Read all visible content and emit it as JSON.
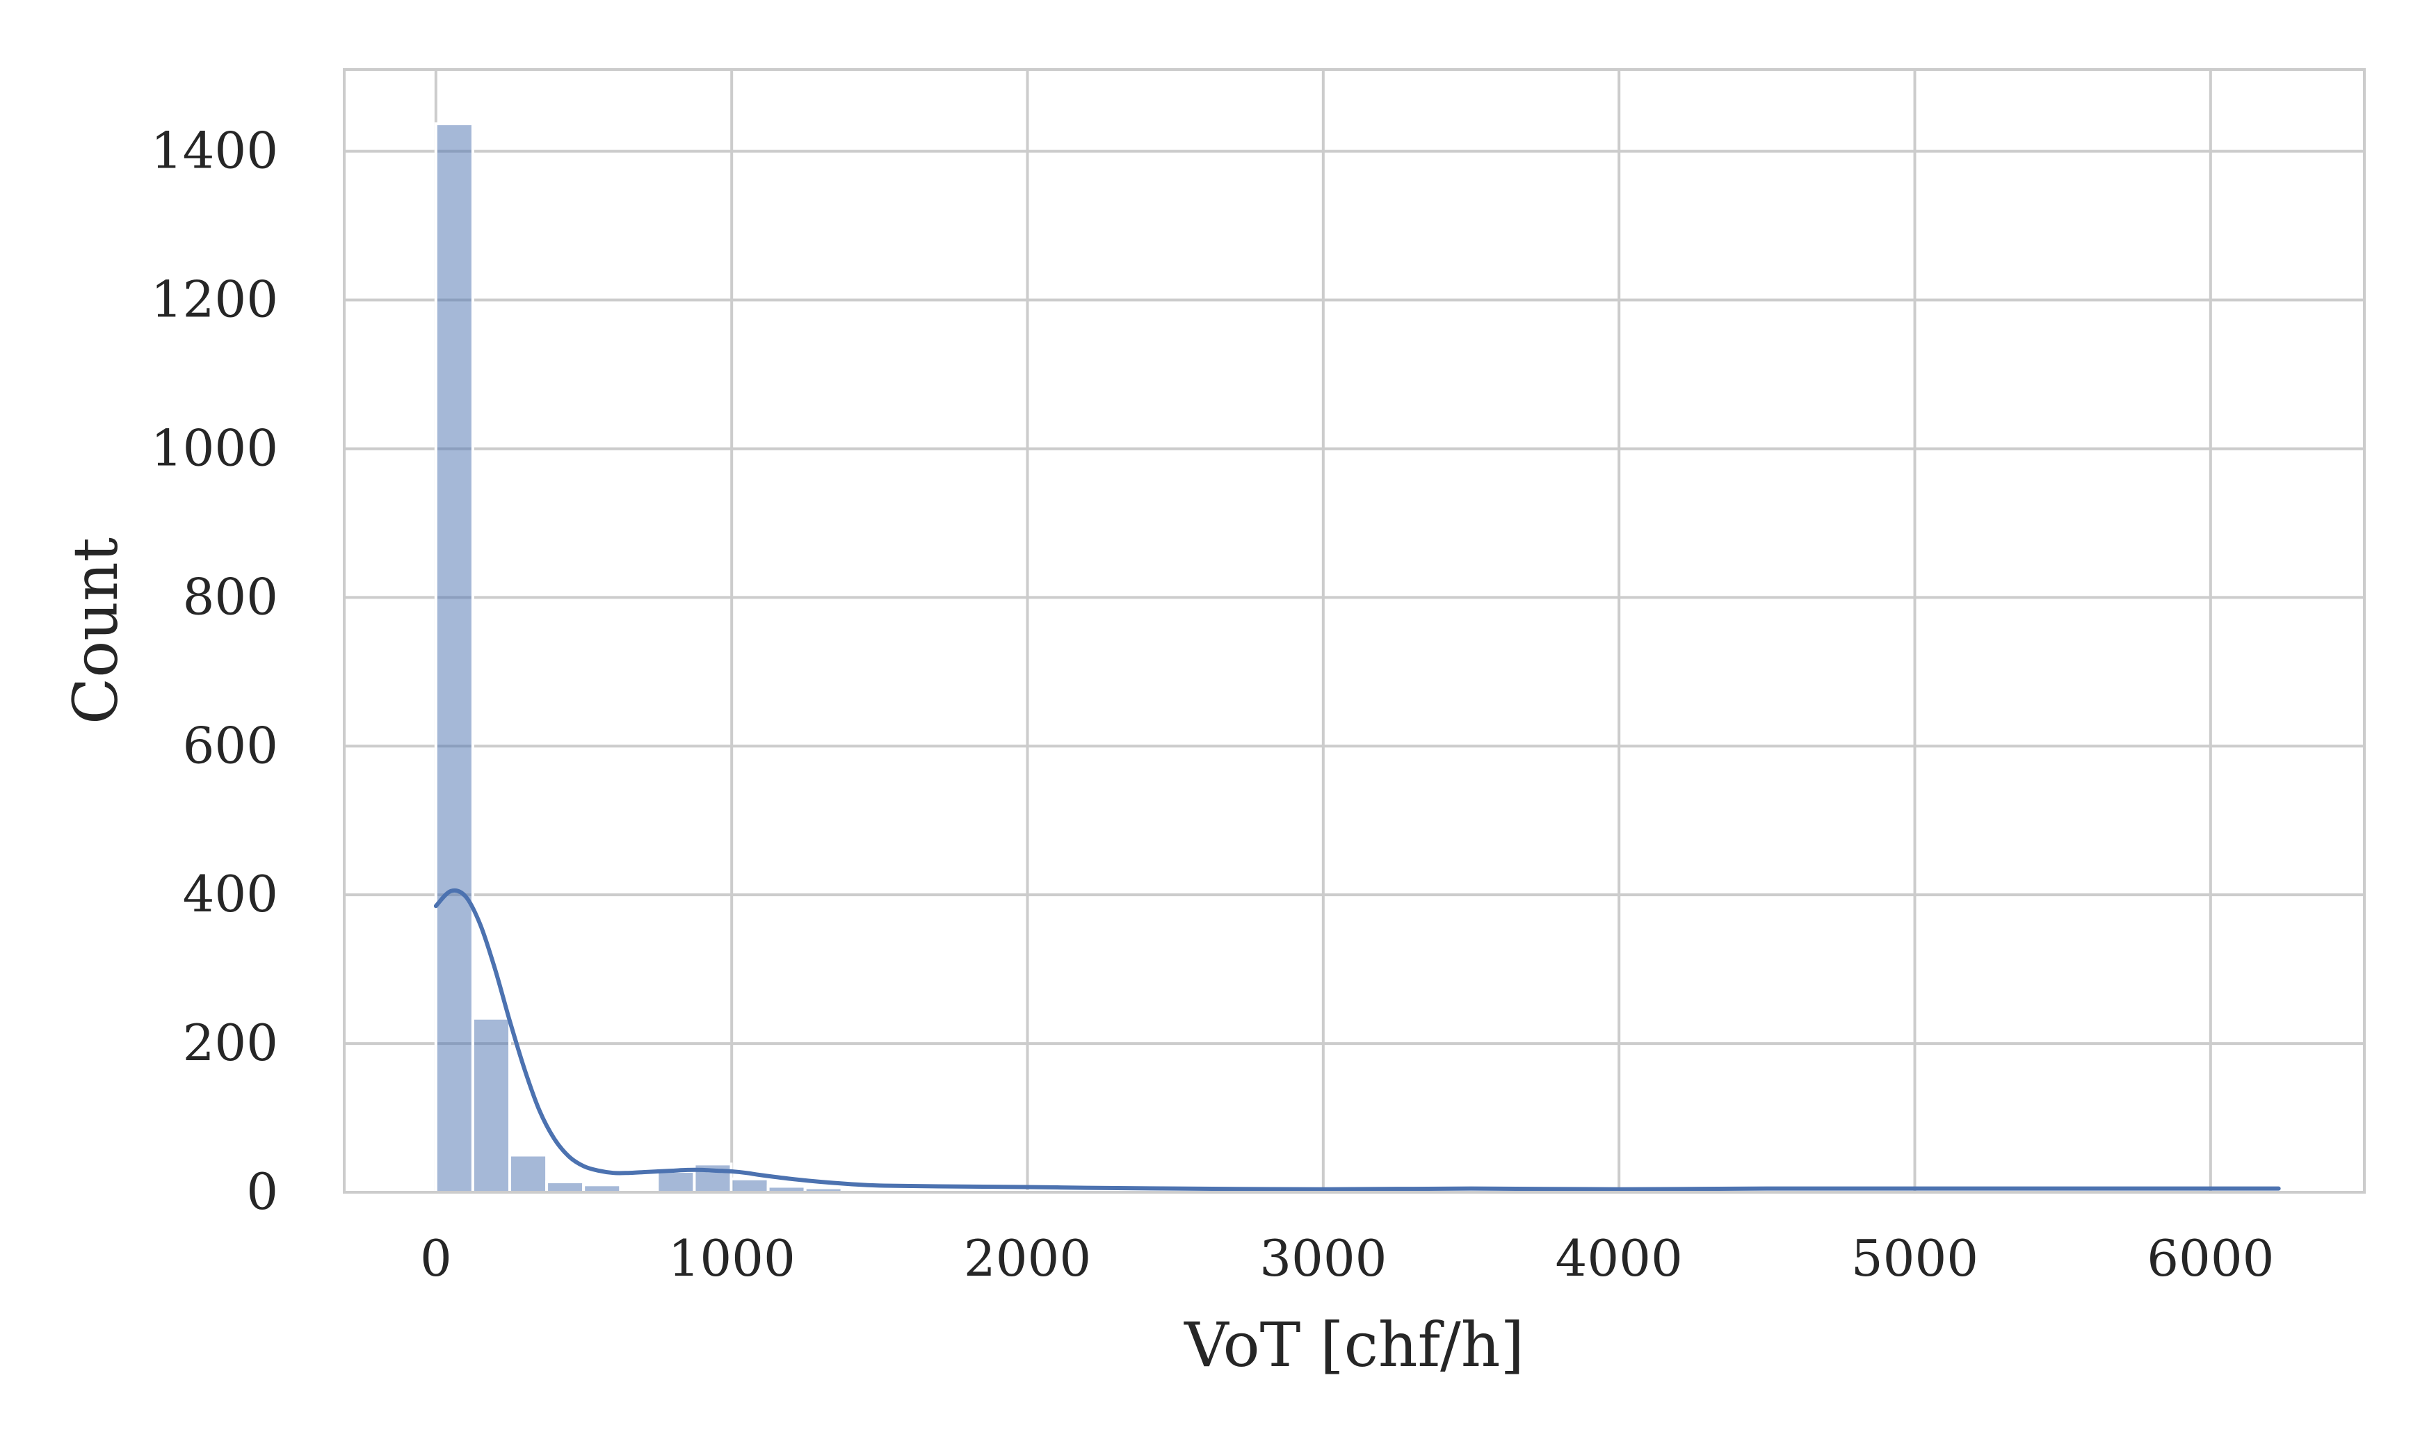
{
  "chart_data": {
    "type": "bar",
    "subtype": "histogram-with-kde",
    "title": "",
    "xlabel": "VoT [chf/h]",
    "ylabel": "Count",
    "xlim": [
      -310,
      6520
    ],
    "ylim": [
      0,
      1510
    ],
    "xticks": [
      0,
      1000,
      2000,
      3000,
      4000,
      5000,
      6000
    ],
    "yticks": [
      0,
      200,
      400,
      600,
      800,
      1000,
      1200,
      1400
    ],
    "grid": true,
    "legend": "none",
    "colors": {
      "bars": "#4c72b0",
      "bar_alpha": 0.5,
      "kde": "#4c72b0",
      "grid": "#cccccc",
      "frame": "#cccccc"
    },
    "bins": {
      "width": 124.8,
      "start": 0,
      "counts": [
        1437,
        234,
        50,
        14,
        10,
        0,
        28,
        38,
        18,
        8,
        6,
        2,
        1,
        1,
        1,
        1,
        1,
        1,
        1,
        1,
        0,
        0,
        0,
        0,
        0,
        0,
        0,
        0,
        0,
        0,
        0,
        0,
        0,
        0,
        0,
        0,
        0,
        0,
        0,
        0,
        0,
        0,
        0,
        0,
        0,
        0,
        0,
        0,
        0,
        0
      ]
    },
    "kde": {
      "x": [
        0,
        50,
        100,
        150,
        200,
        250,
        300,
        350,
        400,
        450,
        500,
        550,
        600,
        650,
        700,
        750,
        800,
        850,
        900,
        950,
        1000,
        1050,
        1100,
        1200,
        1300,
        1400,
        1500,
        1700,
        2000,
        2200,
        2500,
        3000,
        3500,
        4000,
        4500,
        5000,
        5500,
        6000,
        6230
      ],
      "y": [
        385,
        405,
        398,
        360,
        300,
        230,
        165,
        110,
        72,
        48,
        35,
        29,
        26,
        26,
        27,
        28,
        29,
        30,
        30,
        29,
        28,
        26,
        23,
        18,
        14,
        11,
        9,
        8,
        7,
        6,
        5,
        4,
        5,
        4,
        5,
        5,
        5,
        5,
        5
      ]
    }
  }
}
